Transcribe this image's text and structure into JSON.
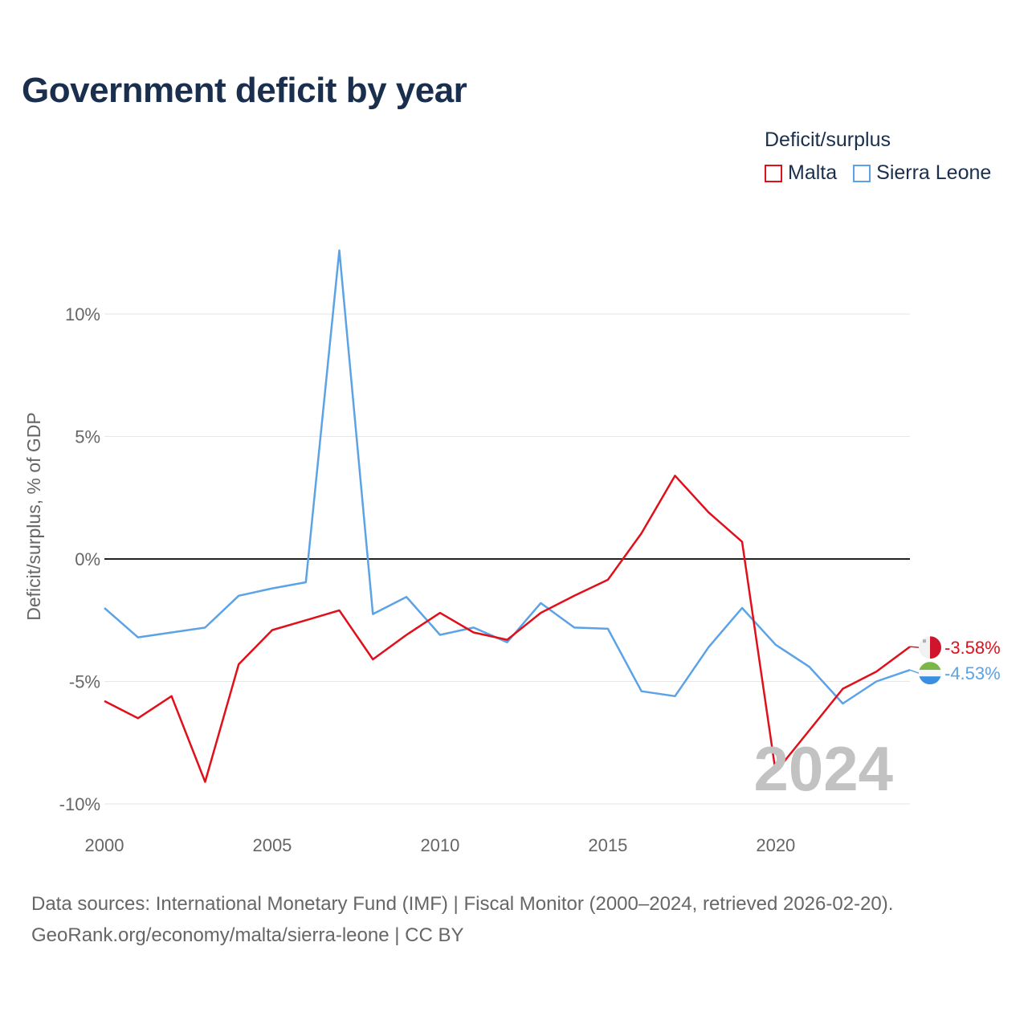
{
  "title": "Government deficit by year",
  "legend": {
    "title": "Deficit/surplus",
    "items": [
      {
        "label": "Malta",
        "color": "#e0101b"
      },
      {
        "label": "Sierra Leone",
        "color": "#5ba3e6"
      }
    ]
  },
  "watermark_year": "2024",
  "source": {
    "line1": "Data sources: International Monetary Fund (IMF) | Fiscal Monitor (2000–2024, retrieved 2026-02-20).",
    "line2": "GeoRank.org/economy/malta/sierra-leone | CC BY"
  },
  "chart_data": {
    "type": "line",
    "title": "Government deficit by year",
    "xlabel": "",
    "ylabel": "Deficit/surplus, % of GDP",
    "x": [
      2000,
      2001,
      2002,
      2003,
      2004,
      2005,
      2006,
      2007,
      2008,
      2009,
      2010,
      2011,
      2012,
      2013,
      2014,
      2015,
      2016,
      2017,
      2018,
      2019,
      2020,
      2021,
      2022,
      2023,
      2024
    ],
    "xlim": [
      2000,
      2024
    ],
    "ylim": [
      -10,
      13
    ],
    "x_ticks": [
      2000,
      2005,
      2010,
      2015,
      2020
    ],
    "y_ticks": [
      {
        "value": -10,
        "label": "-10%"
      },
      {
        "value": -5,
        "label": "-5%"
      },
      {
        "value": 0,
        "label": "0%"
      },
      {
        "value": 5,
        "label": "5%"
      },
      {
        "value": 10,
        "label": "10%"
      }
    ],
    "grid": true,
    "series": [
      {
        "name": "Malta",
        "color": "#e0101b",
        "end_label": "-3.58%",
        "values": [
          -5.8,
          -6.5,
          -5.6,
          -9.1,
          -4.3,
          -2.9,
          -2.5,
          -2.1,
          -4.1,
          -3.1,
          -2.2,
          -3.0,
          -3.3,
          -2.2,
          -1.5,
          -0.85,
          1.05,
          3.4,
          1.9,
          0.7,
          -8.7,
          -7.0,
          -5.3,
          -4.6,
          -3.58
        ]
      },
      {
        "name": "Sierra Leone",
        "color": "#5ba3e6",
        "end_label": "-4.53%",
        "values": [
          -2.0,
          -3.2,
          -3.0,
          -2.8,
          -1.5,
          -1.2,
          -0.95,
          12.6,
          -2.25,
          -1.55,
          -3.1,
          -2.8,
          -3.4,
          -1.8,
          -2.8,
          -2.85,
          -5.4,
          -5.6,
          -3.6,
          -2.0,
          -3.5,
          -4.4,
          -5.9,
          -5.0,
          -4.53
        ]
      }
    ]
  }
}
